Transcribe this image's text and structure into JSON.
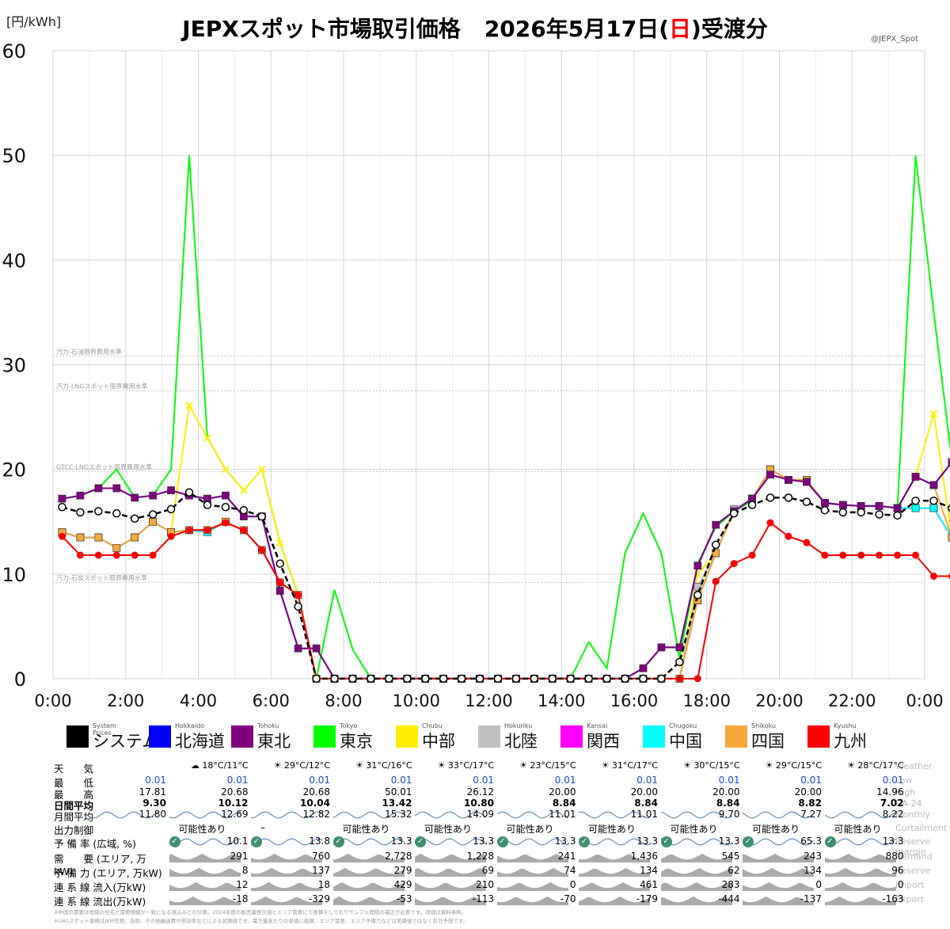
{
  "chart_data": {
    "type": "line",
    "title_main": "JEPXスポット市場取引価格",
    "title_date_pre": "2026年5月17日(",
    "title_day": "日",
    "title_date_post": ")受渡分",
    "ylabel": "[円/kWh]",
    "credit": "@JEPX_Spot",
    "ylim": [
      0,
      60
    ],
    "yticks": [
      0,
      10,
      20,
      30,
      40,
      50,
      60
    ],
    "xticks": [
      "0:00",
      "2:00",
      "4:00",
      "6:00",
      "8:00",
      "10:00",
      "12:00",
      "14:00",
      "16:00",
      "18:00",
      "20:00",
      "22:00",
      "0:00"
    ],
    "reference_lines": [
      {
        "label": "汽力-石油限界費用水準",
        "value": 30.8
      },
      {
        "label": "汽力-LNGスポット限界費用水準",
        "value": 27.5
      },
      {
        "label": "GTCC-LNGスポット限界費用水準",
        "value": 19.8
      },
      {
        "label": "汽力-石炭スポット限界費用水準",
        "value": 9.2
      }
    ],
    "series": [
      {
        "name": "東京",
        "color": "#00ff00",
        "marker": "line",
        "values": [
          17.2,
          17.5,
          18.2,
          20.0,
          17.3,
          17.5,
          20.0,
          50.0,
          23.0,
          20.0,
          18.0,
          20.0,
          13.0,
          8.0,
          0.01,
          8.5,
          2.8,
          0.01,
          0.01,
          0.01,
          0.01,
          0.01,
          0.01,
          0.01,
          0.01,
          0.01,
          0.01,
          0.01,
          0.01,
          3.5,
          1.0,
          12.0,
          15.8,
          12.0,
          2.0,
          11.0,
          14.5,
          16.0,
          17.0,
          20.0,
          19.0,
          19.0,
          16.8,
          16.6,
          16.5,
          16.5,
          16.3,
          50.0,
          35.0,
          20.8
        ]
      },
      {
        "name": "中部",
        "color": "#ffee00",
        "marker": "x",
        "values": [
          14.0,
          13.5,
          13.5,
          12.5,
          13.5,
          15.0,
          14.0,
          26.1,
          23.0,
          20.0,
          18.0,
          20.0,
          13.0,
          8.0,
          0.01,
          0.01,
          0.01,
          0.01,
          0.01,
          0.01,
          0.01,
          0.01,
          0.01,
          0.01,
          0.01,
          0.01,
          0.01,
          0.01,
          0.01,
          0.01,
          0.01,
          0.01,
          0.01,
          0.01,
          0.01,
          10.0,
          12.0,
          16.0,
          17.2,
          20.0,
          19.0,
          19.0,
          16.8,
          16.6,
          16.5,
          16.5,
          16.3,
          19.3,
          25.3,
          13.5
        ]
      },
      {
        "name": "北陸",
        "color": "#c0c0c0",
        "marker": "square",
        "values": [
          14.0,
          13.5,
          13.5,
          12.5,
          13.5,
          15.0,
          14.0,
          14.2,
          14.2,
          15.0,
          14.2,
          12.3,
          9.2,
          8.0,
          0.01,
          0.01,
          0.01,
          0.01,
          0.01,
          0.01,
          0.01,
          0.01,
          0.01,
          0.01,
          0.01,
          0.01,
          0.01,
          0.01,
          0.01,
          0.01,
          0.01,
          0.01,
          0.01,
          0.01,
          0.01,
          8.8,
          12.0,
          16.2,
          17.2,
          20.0,
          19.0,
          19.0,
          16.8,
          16.6,
          16.5,
          16.5,
          16.3,
          16.3,
          16.3,
          13.5
        ]
      },
      {
        "name": "関西",
        "color": "#ff00ff",
        "marker": "square",
        "values": [
          14.0,
          13.5,
          13.5,
          12.5,
          13.5,
          15.0,
          14.0,
          14.2,
          14.2,
          15.0,
          14.2,
          12.3,
          9.2,
          8.0,
          0.01,
          0.01,
          0.01,
          0.01,
          0.01,
          0.01,
          0.01,
          0.01,
          0.01,
          0.01,
          0.01,
          0.01,
          0.01,
          0.01,
          0.01,
          0.01,
          0.01,
          0.01,
          0.01,
          0.01,
          0.01,
          7.5,
          12.0,
          16.0,
          17.2,
          20.0,
          19.0,
          19.0,
          16.8,
          16.6,
          16.5,
          16.5,
          16.3,
          16.3,
          16.3,
          13.5
        ]
      },
      {
        "name": "中国",
        "color": "#00ffff",
        "marker": "square",
        "values": [
          14.0,
          13.5,
          13.5,
          12.5,
          13.5,
          15.0,
          14.0,
          14.2,
          14.0,
          15.0,
          14.2,
          12.3,
          9.2,
          8.0,
          0.01,
          0.01,
          0.01,
          0.01,
          0.01,
          0.01,
          0.01,
          0.01,
          0.01,
          0.01,
          0.01,
          0.01,
          0.01,
          0.01,
          0.01,
          0.01,
          0.01,
          0.01,
          0.01,
          0.01,
          0.01,
          7.5,
          12.0,
          16.0,
          17.2,
          20.0,
          19.0,
          19.0,
          16.8,
          16.6,
          16.5,
          16.5,
          16.3,
          16.3,
          16.3,
          13.5
        ]
      },
      {
        "name": "四国",
        "color": "#f4a93a",
        "marker": "square",
        "values": [
          14.0,
          13.5,
          13.5,
          12.5,
          13.5,
          15.0,
          14.0,
          14.2,
          14.2,
          15.0,
          14.2,
          12.3,
          9.2,
          8.0,
          0.01,
          0.01,
          0.01,
          0.01,
          0.01,
          0.01,
          0.01,
          0.01,
          0.01,
          0.01,
          0.01,
          0.01,
          0.01,
          0.01,
          0.01,
          0.01,
          0.01,
          0.01,
          0.01,
          0.01,
          0.01,
          7.5,
          12.0,
          16.0,
          17.2,
          20.0,
          19.0,
          19.0,
          16.8,
          16.6,
          16.5,
          16.5,
          16.3,
          19.3,
          18.5,
          13.5
        ]
      },
      {
        "name": "北海道",
        "color": "#0000ff",
        "marker": "square",
        "values": [
          17.2,
          17.5,
          18.2,
          18.2,
          17.3,
          17.5,
          18.0,
          17.5,
          17.2,
          17.5,
          15.5,
          15.5,
          8.4,
          2.9,
          2.9,
          0.01,
          0.01,
          0.01,
          0.01,
          0.01,
          0.01,
          0.01,
          0.01,
          0.01,
          0.01,
          0.01,
          0.01,
          0.01,
          0.01,
          0.01,
          0.01,
          0.01,
          1.0,
          3.0,
          3.0,
          10.8,
          14.7,
          16.0,
          17.2,
          19.5,
          19.0,
          18.8,
          16.8,
          16.6,
          16.5,
          16.5,
          16.3,
          19.3,
          18.5,
          20.7
        ]
      },
      {
        "name": "東北",
        "color": "#800080",
        "marker": "square",
        "values": [
          17.2,
          17.5,
          18.2,
          18.2,
          17.3,
          17.5,
          18.0,
          17.5,
          17.2,
          17.5,
          15.5,
          15.5,
          8.4,
          2.9,
          2.9,
          0.01,
          0.01,
          0.01,
          0.01,
          0.01,
          0.01,
          0.01,
          0.01,
          0.01,
          0.01,
          0.01,
          0.01,
          0.01,
          0.01,
          0.01,
          0.01,
          0.01,
          1.0,
          3.0,
          3.0,
          10.8,
          14.7,
          16.0,
          17.2,
          19.5,
          19.0,
          18.8,
          16.8,
          16.6,
          16.5,
          16.5,
          16.3,
          19.3,
          18.5,
          20.7
        ]
      },
      {
        "name": "九州",
        "color": "#ff0000",
        "marker": "circle",
        "values": [
          13.6,
          11.8,
          11.8,
          11.8,
          11.8,
          11.8,
          13.6,
          14.2,
          14.2,
          14.9,
          14.2,
          12.3,
          9.2,
          8.0,
          0.01,
          0.01,
          0.01,
          0.01,
          0.01,
          0.01,
          0.01,
          0.01,
          0.01,
          0.01,
          0.01,
          0.01,
          0.01,
          0.01,
          0.01,
          0.01,
          0.01,
          0.01,
          0.01,
          0.01,
          0.01,
          0.01,
          9.3,
          11.0,
          11.8,
          14.9,
          13.6,
          13.0,
          11.8,
          11.8,
          11.8,
          11.8,
          11.8,
          11.8,
          9.8,
          9.8
        ]
      },
      {
        "name": "システム",
        "color": "#000000",
        "marker": "opencircle",
        "values": [
          16.4,
          15.9,
          16.0,
          15.8,
          15.3,
          15.7,
          16.2,
          17.8,
          16.6,
          16.4,
          16.1,
          15.5,
          11.0,
          6.9,
          0.01,
          0.01,
          0.01,
          0.01,
          0.01,
          0.01,
          0.01,
          0.01,
          0.01,
          0.01,
          0.01,
          0.01,
          0.01,
          0.01,
          0.01,
          0.01,
          0.01,
          0.01,
          0.01,
          0.01,
          1.6,
          8.0,
          12.8,
          15.8,
          16.6,
          17.3,
          17.3,
          16.9,
          16.1,
          15.9,
          15.9,
          15.7,
          15.6,
          17.0,
          17.0,
          16.3
        ]
      }
    ],
    "legend": [
      {
        "en": "System Prices",
        "jp": "システム",
        "color": "#000000"
      },
      {
        "en": "Hokkaido",
        "jp": "北海道",
        "color": "#0000ff"
      },
      {
        "en": "Tohoku",
        "jp": "東北",
        "color": "#800080"
      },
      {
        "en": "Tokyo",
        "jp": "東京",
        "color": "#00ff00"
      },
      {
        "en": "Chubu",
        "jp": "中部",
        "color": "#ffee00"
      },
      {
        "en": "Hokuriku",
        "jp": "北陸",
        "color": "#c0c0c0"
      },
      {
        "en": "Kansai",
        "jp": "関西",
        "color": "#ff00ff"
      },
      {
        "en": "Chugoku",
        "jp": "中国",
        "color": "#00ffff"
      },
      {
        "en": "Shikoku",
        "jp": "四国",
        "color": "#f4a93a"
      },
      {
        "en": "Kyushu",
        "jp": "九州",
        "color": "#ff0000"
      }
    ]
  },
  "table": {
    "rows": [
      {
        "jp": "天　　気",
        "en": "Weather"
      },
      {
        "jp": "最　　低",
        "en": "Low"
      },
      {
        "jp": "最　　高",
        "en": "High"
      },
      {
        "jp": "日間平均",
        "en": "DA-24"
      },
      {
        "jp": "月間平均",
        "en": "Monthly"
      },
      {
        "jp": "出力制御",
        "en": "Curtailment"
      },
      {
        "jp": "予 備 率 (広域, %)",
        "en": "Reserve margin"
      },
      {
        "jp": "需　　要 (エリア, 万kW)",
        "en": "Demand"
      },
      {
        "jp": "予 備 力 (エリア, 万kW)",
        "en": "Reserve"
      },
      {
        "jp": "連 系 線 流入(万kW)",
        "en": "Import"
      },
      {
        "jp": "連 系 線 流出(万kW)",
        "en": "Export"
      }
    ],
    "columns": [
      {
        "key": "system",
        "low": "0.01",
        "high": "17.81",
        "avg": "9.30",
        "monthly": "11.80"
      },
      {
        "key": "hokkaido",
        "weather_icon": "cloud-icon",
        "weather": "18°C/11°C",
        "low": "0.01",
        "high": "20.68",
        "avg": "10.12",
        "monthly": "12.69",
        "curtail": "可能性あり",
        "reserve_pct": "10.1",
        "demand": "291",
        "reserve": "8",
        "import": "12",
        "export": "-18"
      },
      {
        "key": "tohoku",
        "weather_icon": "sun-icon",
        "weather": "29°C/12°C",
        "low": "0.01",
        "high": "20.68",
        "avg": "10.04",
        "monthly": "12.82",
        "curtail": "–",
        "reserve_pct": "13.8",
        "demand": "760",
        "reserve": "137",
        "import": "18",
        "export": "-329"
      },
      {
        "key": "tokyo",
        "weather_icon": "sun-icon",
        "weather": "31°C/16°C",
        "low": "0.01",
        "high": "50.01",
        "avg": "13.42",
        "monthly": "15.32",
        "curtail": "可能性あり",
        "reserve_pct": "13.3",
        "demand": "2,728",
        "reserve": "279",
        "import": "429",
        "export": "-53"
      },
      {
        "key": "chubu",
        "weather_icon": "sun-icon",
        "weather": "33°C/17°C",
        "low": "0.01",
        "high": "26.12",
        "avg": "10.80",
        "monthly": "14.09",
        "curtail": "可能性あり",
        "reserve_pct": "13.3",
        "demand": "1,228",
        "reserve": "69",
        "import": "210",
        "export": "-113"
      },
      {
        "key": "hokuriku",
        "weather_icon": "sun-icon",
        "weather": "23°C/15°C",
        "low": "0.01",
        "high": "20.00",
        "avg": "8.84",
        "monthly": "11.01",
        "curtail": "可能性あり",
        "reserve_pct": "13.3",
        "demand": "241",
        "reserve": "74",
        "import": "0",
        "export": "-70"
      },
      {
        "key": "kansai",
        "weather_icon": "sun-icon",
        "weather": "31°C/17°C",
        "low": "0.01",
        "high": "20.00",
        "avg": "8.84",
        "monthly": "11.01",
        "curtail": "可能性あり",
        "reserve_pct": "13.3",
        "demand": "1,436",
        "reserve": "134",
        "import": "461",
        "export": "-179"
      },
      {
        "key": "chugoku",
        "weather_icon": "sun-icon",
        "weather": "30°C/15°C",
        "low": "0.01",
        "high": "20.00",
        "avg": "8.84",
        "monthly": "9.70",
        "curtail": "可能性あり",
        "reserve_pct": "13.3",
        "demand": "545",
        "reserve": "62",
        "import": "283",
        "export": "-444"
      },
      {
        "key": "shikoku",
        "weather_icon": "sun-icon",
        "weather": "29°C/15°C",
        "low": "0.01",
        "high": "20.00",
        "avg": "8.82",
        "monthly": "7.27",
        "curtail": "可能性あり",
        "reserve_pct": "65.3",
        "demand": "243",
        "reserve": "134",
        "import": "0",
        "export": "-137"
      },
      {
        "key": "kyushu",
        "weather_icon": "sun-icon",
        "weather": "28°C/17°C",
        "low": "0.01",
        "high": "14.96",
        "avg": "7.02",
        "monthly": "8.22",
        "curtail": "可能性あり",
        "reserve_pct": "13.3",
        "demand": "880",
        "reserve": "96",
        "import": "0",
        "export": "-163"
      }
    ]
  },
  "footnotes": [
    "※中国の需要は地域の住宅と需要規模が一致になる見込みとの計算。2024年度の販売量推計値とエリア需要にて推算をしておりサンプル間隔の補正が必要です。詳細は資料参照。",
    "※LNGスポット価格はJKM先物、為替、その他輸送費や熱効率などによる試算値です。電力量あたりの単価に換算、エリア需要、エリア予備力などは実績値ではなく前日予想です。"
  ]
}
